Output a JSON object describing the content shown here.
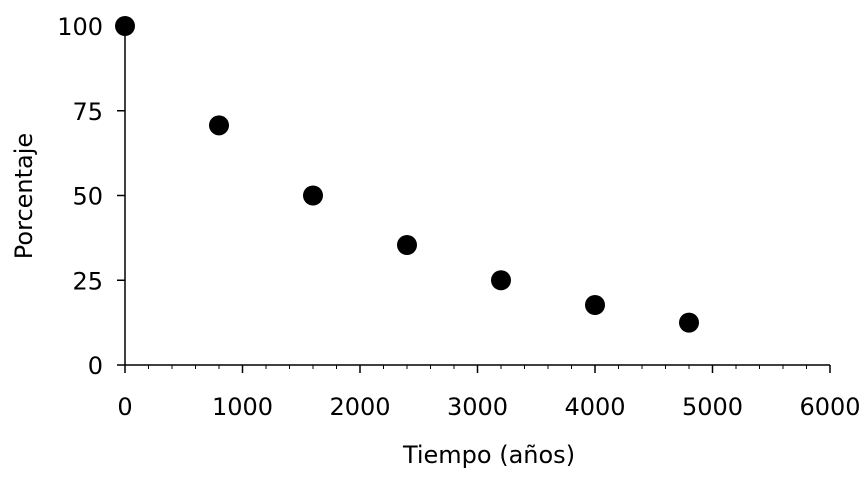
{
  "chart_data": {
    "type": "scatter",
    "title": "",
    "xlabel": "Tiempo (años)",
    "ylabel": "Porcentaje",
    "xlim": [
      0,
      6000
    ],
    "ylim": [
      0,
      100
    ],
    "x_ticks": [
      0,
      1000,
      2000,
      3000,
      4000,
      5000,
      6000
    ],
    "y_ticks": [
      0,
      25,
      50,
      75,
      100
    ],
    "x_tick_labels": [
      "0",
      "1000",
      "2000",
      "3000",
      "4000",
      "5000",
      "6000"
    ],
    "y_tick_labels": [
      "0",
      "25",
      "50",
      "75",
      "100"
    ],
    "x_minor_step": 200,
    "grid": false,
    "legend": "none",
    "colors": {
      "marker": "#000000",
      "axis": "#000000"
    },
    "series": [
      {
        "x": [
          0,
          800,
          1600,
          2400,
          3200,
          4000,
          4800
        ],
        "y": [
          100,
          70.7,
          50,
          35.4,
          25,
          17.7,
          12.5
        ]
      }
    ]
  }
}
